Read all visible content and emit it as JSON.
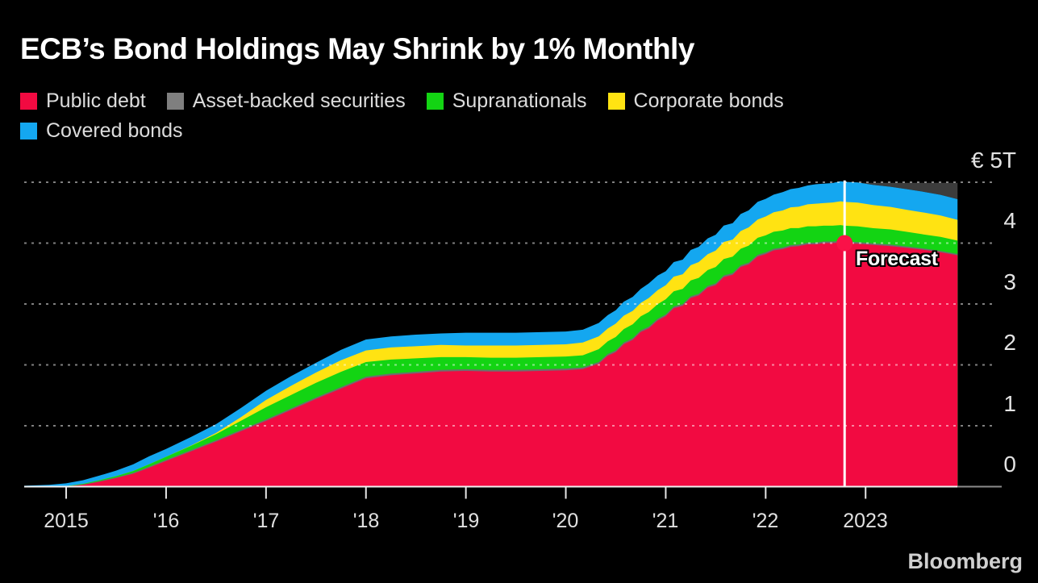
{
  "title": "ECB’s Bond Holdings May Shrink by 1% Monthly",
  "branding": "Bloomberg",
  "forecast_label": "Forecast",
  "legend": [
    {
      "label": "Public debt",
      "color": "#f20a41"
    },
    {
      "label": "Asset-backed securities",
      "color": "#7f7f7f"
    },
    {
      "label": "Supranationals",
      "color": "#13d413"
    },
    {
      "label": "Corporate bonds",
      "color": "#ffe312"
    },
    {
      "label": "Covered bonds",
      "color": "#14a7f0"
    }
  ],
  "chart_data": {
    "type": "area",
    "stacked": true,
    "unit": "EUR trillions",
    "title": "ECB’s Bond Holdings May Shrink by 1% Monthly",
    "grid": "dotted horizontal",
    "x_axis": {
      "range": [
        2014.58,
        2023.92
      ],
      "ticks": [
        {
          "x": 2015,
          "label": "2015"
        },
        {
          "x": 2016,
          "label": "'16"
        },
        {
          "x": 2017,
          "label": "'17"
        },
        {
          "x": 2018,
          "label": "'18"
        },
        {
          "x": 2019,
          "label": "'19"
        },
        {
          "x": 2020,
          "label": "'20"
        },
        {
          "x": 2021,
          "label": "'21"
        },
        {
          "x": 2022,
          "label": "'22"
        },
        {
          "x": 2023,
          "label": "2023"
        }
      ]
    },
    "y_axis": {
      "range": [
        0,
        5.2
      ],
      "gridline_values": [
        1,
        2,
        3,
        4,
        5
      ],
      "ticks": [
        {
          "value": 5,
          "label": "€ 5T"
        },
        {
          "value": 4,
          "label": "4"
        },
        {
          "value": 3,
          "label": "3"
        },
        {
          "value": 2,
          "label": "2"
        },
        {
          "value": 1,
          "label": "1"
        },
        {
          "value": 0,
          "label": "0"
        }
      ]
    },
    "x": [
      2014.58,
      2014.83,
      2015,
      2015.17,
      2015.33,
      2015.5,
      2015.67,
      2015.83,
      2016,
      2016.25,
      2016.5,
      2016.75,
      2017,
      2017.25,
      2017.5,
      2017.75,
      2018,
      2018.25,
      2018.5,
      2018.75,
      2019,
      2019.25,
      2019.5,
      2019.75,
      2020,
      2020.17,
      2020.33,
      2020.42,
      2020.5,
      2020.58,
      2020.67,
      2020.75,
      2020.83,
      2020.92,
      2021,
      2021.08,
      2021.17,
      2021.25,
      2021.33,
      2021.42,
      2021.5,
      2021.58,
      2021.67,
      2021.75,
      2021.83,
      2021.92,
      2022,
      2022.08,
      2022.17,
      2022.25,
      2022.33,
      2022.42,
      2022.5,
      2022.58,
      2022.67,
      2022.75,
      2022.79,
      2022.92,
      2023.08,
      2023.25,
      2023.42,
      2023.58,
      2023.75,
      2023.92
    ],
    "series": [
      {
        "name": "Public debt",
        "color": "#f20a41",
        "values": [
          0,
          0,
          0.005,
          0.03,
          0.08,
          0.14,
          0.21,
          0.31,
          0.42,
          0.58,
          0.74,
          0.91,
          1.08,
          1.26,
          1.44,
          1.61,
          1.78,
          1.83,
          1.86,
          1.89,
          1.9,
          1.89,
          1.89,
          1.9,
          1.91,
          1.93,
          2.02,
          2.15,
          2.21,
          2.34,
          2.41,
          2.54,
          2.6,
          2.73,
          2.8,
          2.93,
          2.97,
          3.1,
          3.14,
          3.27,
          3.31,
          3.44,
          3.48,
          3.61,
          3.65,
          3.78,
          3.82,
          3.88,
          3.9,
          3.94,
          3.95,
          3.98,
          3.98,
          4.0,
          4.0,
          4.01,
          4.0,
          3.99,
          3.97,
          3.95,
          3.92,
          3.89,
          3.85,
          3.8
        ]
      },
      {
        "name": "Asset-backed securities",
        "color": "#6e6e6e",
        "values": [
          0,
          0,
          0.002,
          0.006,
          0.01,
          0.013,
          0.016,
          0.018,
          0.02,
          0.021,
          0.022,
          0.023,
          0.024,
          0.025,
          0.025,
          0.026,
          0.027,
          0.027,
          0.027,
          0.027,
          0.028,
          0.028,
          0.028,
          0.028,
          0.028,
          0.028,
          0.028,
          0.028,
          0.028,
          0.028,
          0.028,
          0.028,
          0.028,
          0.028,
          0.028,
          0.028,
          0.028,
          0.028,
          0.028,
          0.028,
          0.028,
          0.028,
          0.028,
          0.028,
          0.028,
          0.028,
          0.027,
          0.027,
          0.027,
          0.027,
          0.027,
          0.027,
          0.027,
          0.027,
          0.027,
          0.027,
          0.027,
          0.026,
          0.025,
          0.025,
          0.024,
          0.023,
          0.023,
          0.022
        ]
      },
      {
        "name": "Supranationals",
        "color": "#13d413",
        "values": [
          0,
          0,
          0.002,
          0.01,
          0.015,
          0.02,
          0.03,
          0.04,
          0.05,
          0.07,
          0.1,
          0.15,
          0.2,
          0.22,
          0.24,
          0.25,
          0.24,
          0.23,
          0.22,
          0.21,
          0.2,
          0.2,
          0.2,
          0.2,
          0.2,
          0.2,
          0.21,
          0.21,
          0.22,
          0.22,
          0.23,
          0.23,
          0.24,
          0.24,
          0.25,
          0.25,
          0.25,
          0.26,
          0.26,
          0.26,
          0.27,
          0.27,
          0.27,
          0.27,
          0.28,
          0.28,
          0.28,
          0.28,
          0.28,
          0.28,
          0.27,
          0.27,
          0.27,
          0.26,
          0.26,
          0.26,
          0.26,
          0.26,
          0.25,
          0.25,
          0.24,
          0.23,
          0.23,
          0.22
        ]
      },
      {
        "name": "Corporate bonds",
        "color": "#ffe312",
        "values": [
          0,
          0,
          0,
          0,
          0,
          0,
          0,
          0,
          0,
          0.005,
          0.02,
          0.06,
          0.12,
          0.15,
          0.17,
          0.19,
          0.19,
          0.2,
          0.2,
          0.2,
          0.19,
          0.2,
          0.2,
          0.2,
          0.2,
          0.21,
          0.21,
          0.21,
          0.22,
          0.22,
          0.22,
          0.22,
          0.23,
          0.23,
          0.23,
          0.24,
          0.24,
          0.25,
          0.26,
          0.26,
          0.27,
          0.28,
          0.28,
          0.29,
          0.3,
          0.3,
          0.31,
          0.32,
          0.33,
          0.34,
          0.35,
          0.36,
          0.37,
          0.37,
          0.38,
          0.39,
          0.39,
          0.39,
          0.38,
          0.37,
          0.36,
          0.36,
          0.35,
          0.34
        ]
      },
      {
        "name": "Covered bonds",
        "color": "#14a7f0",
        "values": [
          0.015,
          0.03,
          0.045,
          0.06,
          0.075,
          0.09,
          0.11,
          0.13,
          0.13,
          0.14,
          0.145,
          0.15,
          0.15,
          0.16,
          0.16,
          0.17,
          0.18,
          0.18,
          0.19,
          0.19,
          0.21,
          0.21,
          0.21,
          0.21,
          0.21,
          0.21,
          0.22,
          0.22,
          0.22,
          0.23,
          0.23,
          0.23,
          0.24,
          0.24,
          0.23,
          0.24,
          0.24,
          0.25,
          0.25,
          0.26,
          0.26,
          0.27,
          0.27,
          0.28,
          0.28,
          0.29,
          0.29,
          0.29,
          0.3,
          0.3,
          0.31,
          0.31,
          0.32,
          0.32,
          0.32,
          0.33,
          0.33,
          0.33,
          0.33,
          0.33,
          0.34,
          0.34,
          0.34,
          0.34
        ]
      }
    ],
    "forecast": {
      "start_x": 2022.79,
      "label": "Forecast",
      "marker_value": 4.0,
      "marker_color": "#fa1148",
      "line_color": "#ffffff",
      "shadow_level": 4.99,
      "shadow_color": "#3c3c3c"
    }
  }
}
